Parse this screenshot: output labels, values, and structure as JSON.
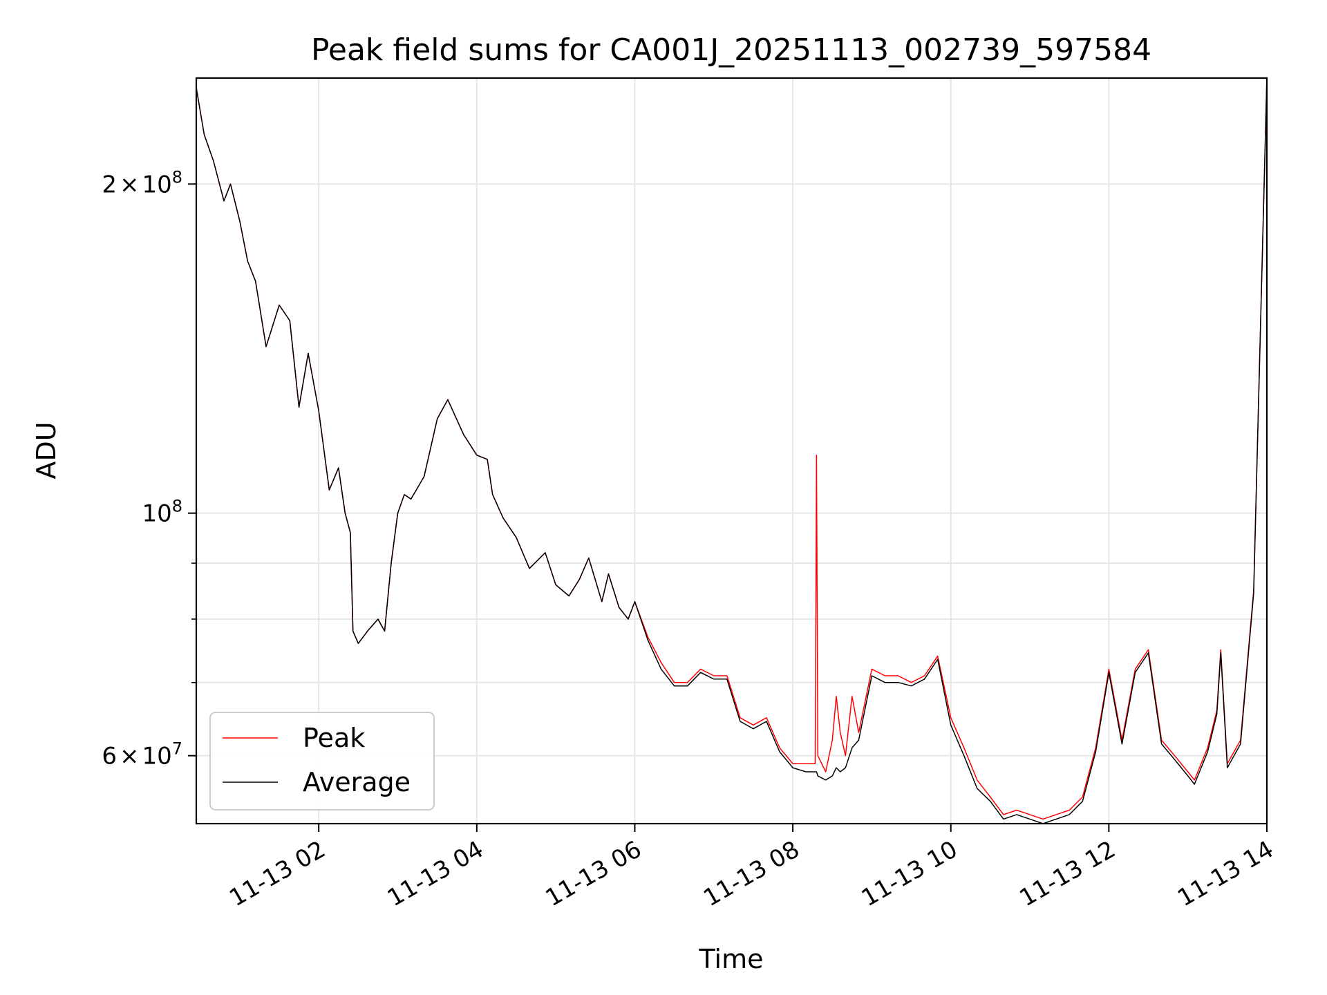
{
  "chart_data": {
    "type": "line",
    "title": "Peak field sums for CA001J_20251113_002739_597584",
    "xlabel": "Time",
    "ylabel": "ADU",
    "yscale": "log",
    "grid": true,
    "legend_position": "lower-left",
    "xlim": [
      "2025-11-13 00:27",
      "2025-11-13 14:00"
    ],
    "ylim": [
      52000000,
      250000000
    ],
    "x_ticks": [
      "11-13 02",
      "11-13 04",
      "11-13 06",
      "11-13 08",
      "11-13 10",
      "11-13 12",
      "11-13 14"
    ],
    "y_ticks": [
      {
        "value": 200000000,
        "base": "2",
        "mult": "×",
        "pow": "10",
        "exp": "8"
      },
      {
        "value": 100000000,
        "base": "",
        "mult": "",
        "pow": "10",
        "exp": "8"
      },
      {
        "value": 60000000,
        "base": "6",
        "mult": "×",
        "pow": "10",
        "exp": "7"
      }
    ],
    "y_minor_ticks": [
      70000000,
      80000000,
      90000000
    ],
    "series": [
      {
        "name": "Peak",
        "color": "#ff0000",
        "x": [
          "2025-11-13 00:27",
          "2025-11-13 00:33",
          "2025-11-13 00:40",
          "2025-11-13 00:48",
          "2025-11-13 00:53",
          "2025-11-13 01:00",
          "2025-11-13 01:06",
          "2025-11-13 01:12",
          "2025-11-13 01:20",
          "2025-11-13 01:30",
          "2025-11-13 01:38",
          "2025-11-13 01:45",
          "2025-11-13 01:52",
          "2025-11-13 02:00",
          "2025-11-13 02:08",
          "2025-11-13 02:15",
          "2025-11-13 02:20",
          "2025-11-13 02:24",
          "2025-11-13 02:26",
          "2025-11-13 02:30",
          "2025-11-13 02:37",
          "2025-11-13 02:45",
          "2025-11-13 02:50",
          "2025-11-13 02:55",
          "2025-11-13 03:00",
          "2025-11-13 03:05",
          "2025-11-13 03:10",
          "2025-11-13 03:20",
          "2025-11-13 03:30",
          "2025-11-13 03:38",
          "2025-11-13 03:50",
          "2025-11-13 04:00",
          "2025-11-13 04:08",
          "2025-11-13 04:12",
          "2025-11-13 04:20",
          "2025-11-13 04:30",
          "2025-11-13 04:40",
          "2025-11-13 04:52",
          "2025-11-13 05:00",
          "2025-11-13 05:10",
          "2025-11-13 05:18",
          "2025-11-13 05:25",
          "2025-11-13 05:35",
          "2025-11-13 05:40",
          "2025-11-13 05:48",
          "2025-11-13 05:55",
          "2025-11-13 06:00",
          "2025-11-13 06:10",
          "2025-11-13 06:20",
          "2025-11-13 06:30",
          "2025-11-13 06:40",
          "2025-11-13 06:50",
          "2025-11-13 07:00",
          "2025-11-13 07:10",
          "2025-11-13 07:20",
          "2025-11-13 07:30",
          "2025-11-13 07:40",
          "2025-11-13 07:50",
          "2025-11-13 08:00",
          "2025-11-13 08:10",
          "2025-11-13 08:17",
          "2025-11-13 08:18",
          "2025-11-13 08:19",
          "2025-11-13 08:25",
          "2025-11-13 08:30",
          "2025-11-13 08:33",
          "2025-11-13 08:36",
          "2025-11-13 08:40",
          "2025-11-13 08:45",
          "2025-11-13 08:50",
          "2025-11-13 09:00",
          "2025-11-13 09:10",
          "2025-11-13 09:20",
          "2025-11-13 09:30",
          "2025-11-13 09:40",
          "2025-11-13 09:50",
          "2025-11-13 10:00",
          "2025-11-13 10:10",
          "2025-11-13 10:20",
          "2025-11-13 10:30",
          "2025-11-13 10:40",
          "2025-11-13 10:50",
          "2025-11-13 11:00",
          "2025-11-13 11:10",
          "2025-11-13 11:20",
          "2025-11-13 11:30",
          "2025-11-13 11:40",
          "2025-11-13 11:50",
          "2025-11-13 12:00",
          "2025-11-13 12:10",
          "2025-11-13 12:20",
          "2025-11-13 12:30",
          "2025-11-13 12:40",
          "2025-11-13 12:50",
          "2025-11-13 13:00",
          "2025-11-13 13:05",
          "2025-11-13 13:15",
          "2025-11-13 13:22",
          "2025-11-13 13:25",
          "2025-11-13 13:30",
          "2025-11-13 13:40",
          "2025-11-13 13:50",
          "2025-11-13 14:00"
        ],
        "y": [
          245000000,
          222000000,
          210000000,
          193000000,
          200000000,
          185000000,
          170000000,
          163000000,
          142000000,
          155000000,
          150000000,
          125000000,
          140000000,
          124000000,
          105000000,
          110000000,
          100000000,
          96000000,
          78000000,
          76000000,
          78000000,
          80000000,
          78000000,
          90000000,
          100000000,
          104000000,
          103000000,
          108000000,
          122000000,
          127000000,
          118000000,
          113000000,
          112000000,
          104000000,
          99000000,
          95000000,
          89000000,
          92000000,
          86000000,
          84000000,
          87000000,
          91000000,
          83000000,
          88000000,
          82000000,
          80000000,
          83000000,
          77000000,
          73000000,
          70000000,
          70000000,
          72000000,
          71000000,
          71000000,
          65000000,
          64000000,
          65000000,
          61000000,
          59000000,
          59000000,
          59000000,
          113000000,
          60000000,
          58000000,
          62000000,
          68000000,
          63000000,
          60000000,
          68000000,
          63000000,
          72000000,
          71000000,
          71000000,
          70000000,
          71000000,
          74000000,
          65000000,
          61000000,
          57000000,
          55000000,
          53000000,
          53500000,
          53000000,
          52500000,
          53000000,
          53500000,
          55000000,
          61000000,
          72000000,
          62000000,
          72000000,
          75000000,
          62000000,
          60000000,
          58000000,
          57000000,
          61000000,
          66000000,
          75000000,
          59000000,
          62000000,
          85000000,
          250000000
        ]
      },
      {
        "name": "Average",
        "color": "#000000",
        "x": [
          "2025-11-13 00:27",
          "2025-11-13 00:33",
          "2025-11-13 00:40",
          "2025-11-13 00:48",
          "2025-11-13 00:53",
          "2025-11-13 01:00",
          "2025-11-13 01:06",
          "2025-11-13 01:12",
          "2025-11-13 01:20",
          "2025-11-13 01:30",
          "2025-11-13 01:38",
          "2025-11-13 01:45",
          "2025-11-13 01:52",
          "2025-11-13 02:00",
          "2025-11-13 02:08",
          "2025-11-13 02:15",
          "2025-11-13 02:20",
          "2025-11-13 02:24",
          "2025-11-13 02:26",
          "2025-11-13 02:30",
          "2025-11-13 02:37",
          "2025-11-13 02:45",
          "2025-11-13 02:50",
          "2025-11-13 02:55",
          "2025-11-13 03:00",
          "2025-11-13 03:05",
          "2025-11-13 03:10",
          "2025-11-13 03:20",
          "2025-11-13 03:30",
          "2025-11-13 03:38",
          "2025-11-13 03:50",
          "2025-11-13 04:00",
          "2025-11-13 04:08",
          "2025-11-13 04:12",
          "2025-11-13 04:20",
          "2025-11-13 04:30",
          "2025-11-13 04:40",
          "2025-11-13 04:52",
          "2025-11-13 05:00",
          "2025-11-13 05:10",
          "2025-11-13 05:18",
          "2025-11-13 05:25",
          "2025-11-13 05:35",
          "2025-11-13 05:40",
          "2025-11-13 05:48",
          "2025-11-13 05:55",
          "2025-11-13 06:00",
          "2025-11-13 06:10",
          "2025-11-13 06:20",
          "2025-11-13 06:30",
          "2025-11-13 06:40",
          "2025-11-13 06:50",
          "2025-11-13 07:00",
          "2025-11-13 07:10",
          "2025-11-13 07:20",
          "2025-11-13 07:30",
          "2025-11-13 07:40",
          "2025-11-13 07:50",
          "2025-11-13 08:00",
          "2025-11-13 08:10",
          "2025-11-13 08:17",
          "2025-11-13 08:18",
          "2025-11-13 08:19",
          "2025-11-13 08:25",
          "2025-11-13 08:30",
          "2025-11-13 08:33",
          "2025-11-13 08:36",
          "2025-11-13 08:40",
          "2025-11-13 08:45",
          "2025-11-13 08:50",
          "2025-11-13 09:00",
          "2025-11-13 09:10",
          "2025-11-13 09:20",
          "2025-11-13 09:30",
          "2025-11-13 09:40",
          "2025-11-13 09:50",
          "2025-11-13 10:00",
          "2025-11-13 10:10",
          "2025-11-13 10:20",
          "2025-11-13 10:30",
          "2025-11-13 10:40",
          "2025-11-13 10:50",
          "2025-11-13 11:00",
          "2025-11-13 11:10",
          "2025-11-13 11:20",
          "2025-11-13 11:30",
          "2025-11-13 11:40",
          "2025-11-13 11:50",
          "2025-11-13 12:00",
          "2025-11-13 12:10",
          "2025-11-13 12:20",
          "2025-11-13 12:30",
          "2025-11-13 12:40",
          "2025-11-13 12:50",
          "2025-11-13 13:00",
          "2025-11-13 13:05",
          "2025-11-13 13:15",
          "2025-11-13 13:22",
          "2025-11-13 13:25",
          "2025-11-13 13:30",
          "2025-11-13 13:40",
          "2025-11-13 13:50",
          "2025-11-13 14:00"
        ],
        "y": [
          245000000,
          222000000,
          210000000,
          193000000,
          200000000,
          185000000,
          170000000,
          163000000,
          142000000,
          155000000,
          150000000,
          125000000,
          140000000,
          124000000,
          105000000,
          110000000,
          100000000,
          96000000,
          78000000,
          76000000,
          78000000,
          80000000,
          78000000,
          90000000,
          100000000,
          104000000,
          103000000,
          108000000,
          122000000,
          127000000,
          118000000,
          113000000,
          112000000,
          104000000,
          99000000,
          95000000,
          89000000,
          92000000,
          86000000,
          84000000,
          87000000,
          91000000,
          83000000,
          88000000,
          82000000,
          80000000,
          83000000,
          76500000,
          72000000,
          69500000,
          69500000,
          71500000,
          70500000,
          70500000,
          64500000,
          63500000,
          64500000,
          60500000,
          58500000,
          58000000,
          58000000,
          58000000,
          57500000,
          57000000,
          57500000,
          58500000,
          58000000,
          58500000,
          61000000,
          62000000,
          71000000,
          70000000,
          70000000,
          69500000,
          70500000,
          73500000,
          64000000,
          60000000,
          56000000,
          54500000,
          52500000,
          53000000,
          52500000,
          52000000,
          52500000,
          53000000,
          54500000,
          60500000,
          71500000,
          61500000,
          71500000,
          74500000,
          61500000,
          59500000,
          57500000,
          56500000,
          60500000,
          65500000,
          74500000,
          58500000,
          61500000,
          84500000,
          250000000
        ]
      }
    ]
  }
}
